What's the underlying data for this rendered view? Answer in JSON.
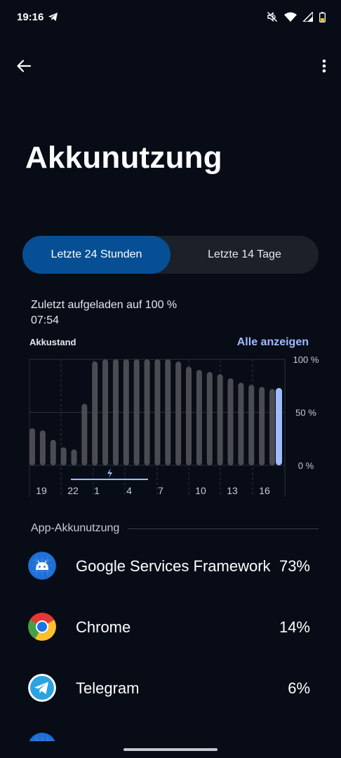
{
  "status_bar": {
    "time": "19:16",
    "left_icon": "telegram-plane-icon",
    "icons": [
      "mute-icon",
      "wifi-icon",
      "signal-icon",
      "battery-icon"
    ]
  },
  "app_bar": {
    "back_icon": "arrow-left-icon",
    "menu_icon": "more-vert-icon"
  },
  "title": "Akkunutzung",
  "tabs": [
    {
      "label": "Letzte 24 Stunden",
      "selected": true
    },
    {
      "label": "Letzte 14 Tage",
      "selected": false
    }
  ],
  "charged_info": {
    "line1": "Zuletzt aufgeladen auf 100 %",
    "line2": "07:54"
  },
  "chart_header": {
    "label": "Akkustand",
    "action": "Alle anzeigen"
  },
  "colors": {
    "accent": "#9fbcff",
    "active_tab": "#064f94",
    "bar": "#4a4c52",
    "current_bar": "#9fbcff",
    "background": "#070c16"
  },
  "chart_data": {
    "type": "bar",
    "ylabels": [
      "100 %",
      "50 %",
      "0 %"
    ],
    "ylim": [
      0,
      100
    ],
    "xlabels": [
      "19",
      "22",
      "1",
      "4",
      "7",
      "10",
      "13",
      "16"
    ],
    "values": [
      35,
      33,
      24,
      17,
      15,
      58,
      98,
      100,
      100,
      100,
      100,
      100,
      100,
      100,
      98,
      93,
      90,
      88,
      86,
      82,
      78,
      76,
      74,
      72
    ],
    "current_value": 73,
    "charging_indicator": "bolt-icon"
  },
  "section_title": "App-Akkunutzung",
  "apps": [
    {
      "name": "Google Services Framework",
      "percent": "73%",
      "icon": "android-icon"
    },
    {
      "name": "Chrome",
      "percent": "14%",
      "icon": "chrome-icon"
    },
    {
      "name": "Telegram",
      "percent": "6%",
      "icon": "telegram-icon"
    }
  ]
}
